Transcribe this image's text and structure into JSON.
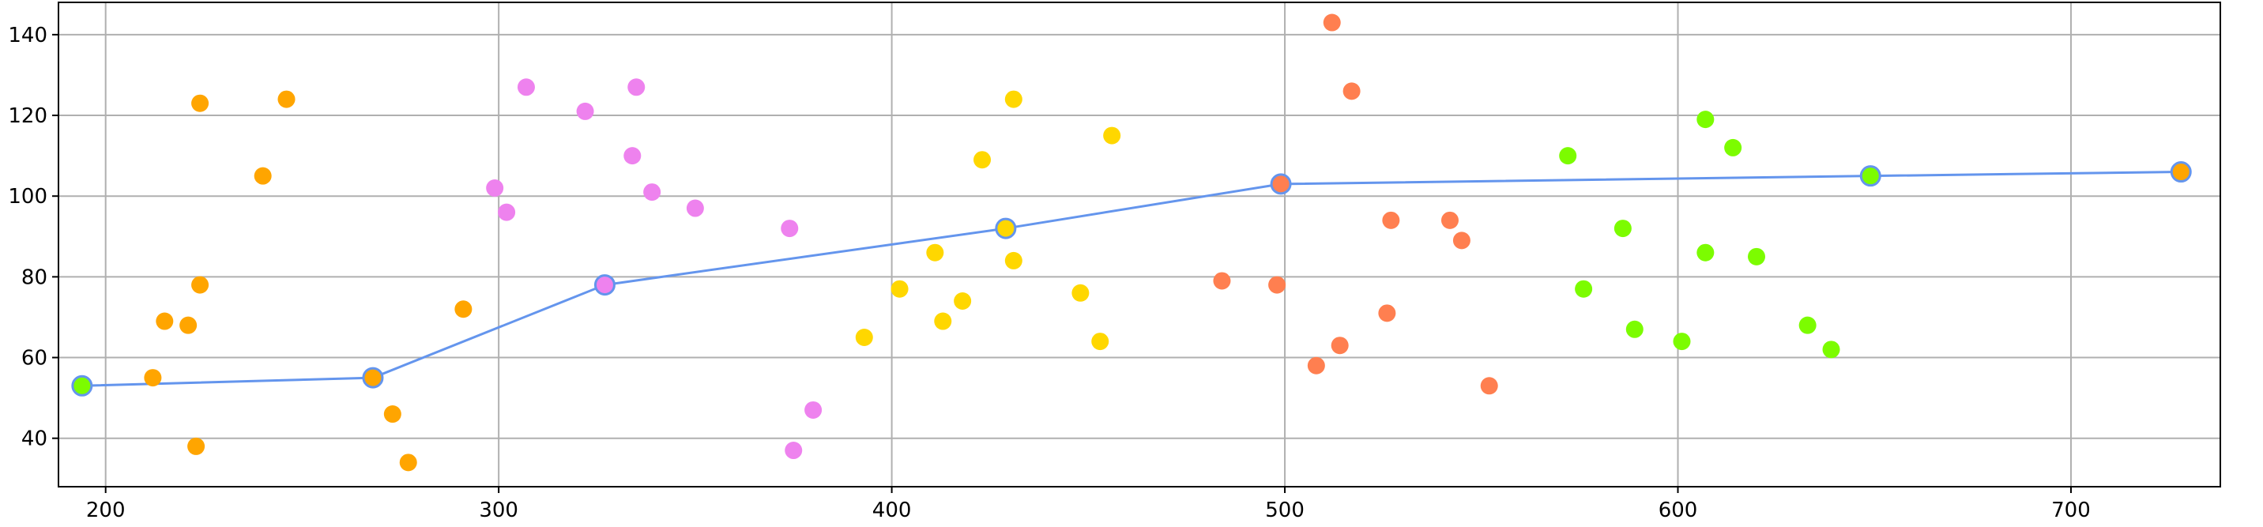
{
  "chart_data": {
    "type": "scatter",
    "title": "",
    "xlabel": "",
    "ylabel": "",
    "xlim": [
      188,
      738
    ],
    "ylim": [
      28,
      148
    ],
    "grid": true,
    "x_ticks": [
      200,
      300,
      400,
      500,
      600,
      700
    ],
    "y_ticks": [
      40,
      60,
      80,
      100,
      120,
      140
    ],
    "x_tick_labels": [
      "200",
      "300",
      "400",
      "500",
      "600",
      "700"
    ],
    "y_tick_labels": [
      "40",
      "60",
      "80",
      "100",
      "120",
      "140"
    ],
    "colors": {
      "line": "#6495ED",
      "grid": "#b0b0b0",
      "axes": "#000000"
    },
    "series": [
      {
        "color": "#FFA500",
        "points": [
          [
            224,
            123
          ],
          [
            246,
            124
          ],
          [
            240,
            105
          ],
          [
            224,
            78
          ],
          [
            215,
            69
          ],
          [
            221,
            68
          ],
          [
            212,
            55
          ],
          [
            223,
            38
          ],
          [
            291,
            72
          ],
          [
            273,
            46
          ],
          [
            277,
            34
          ]
        ]
      },
      {
        "color": "#EE82EE",
        "points": [
          [
            307,
            127
          ],
          [
            322,
            121
          ],
          [
            335,
            127
          ],
          [
            334,
            110
          ],
          [
            339,
            101
          ],
          [
            299,
            102
          ],
          [
            302,
            96
          ],
          [
            350,
            97
          ],
          [
            374,
            92
          ],
          [
            380,
            47
          ],
          [
            375,
            37
          ]
        ]
      },
      {
        "color": "#FFD700",
        "points": [
          [
            431,
            124
          ],
          [
            423,
            109
          ],
          [
            456,
            115
          ],
          [
            411,
            86
          ],
          [
            431,
            84
          ],
          [
            402,
            77
          ],
          [
            418,
            74
          ],
          [
            413,
            69
          ],
          [
            448,
            76
          ],
          [
            393,
            65
          ],
          [
            453,
            64
          ]
        ]
      },
      {
        "color": "#FF7F50",
        "points": [
          [
            512,
            143
          ],
          [
            517,
            126
          ],
          [
            527,
            94
          ],
          [
            542,
            94
          ],
          [
            545,
            89
          ],
          [
            484,
            79
          ],
          [
            498,
            78
          ],
          [
            526,
            71
          ],
          [
            514,
            63
          ],
          [
            508,
            58
          ],
          [
            552,
            53
          ]
        ]
      },
      {
        "color": "#7CFC00",
        "points": [
          [
            607,
            119
          ],
          [
            614,
            112
          ],
          [
            572,
            110
          ],
          [
            586,
            92
          ],
          [
            607,
            86
          ],
          [
            620,
            85
          ],
          [
            576,
            77
          ],
          [
            589,
            67
          ],
          [
            601,
            64
          ],
          [
            633,
            68
          ],
          [
            639,
            62
          ]
        ]
      }
    ],
    "line": {
      "points": [
        {
          "x": 194,
          "y": 53,
          "fill": "#7CFC00"
        },
        {
          "x": 268,
          "y": 55,
          "fill": "#FFA500"
        },
        {
          "x": 327,
          "y": 78,
          "fill": "#EE82EE"
        },
        {
          "x": 429,
          "y": 92,
          "fill": "#FFD700"
        },
        {
          "x": 499,
          "y": 103,
          "fill": "#FF7F50"
        },
        {
          "x": 649,
          "y": 105,
          "fill": "#7CFC00"
        },
        {
          "x": 728,
          "y": 106,
          "fill": "#FFA500"
        }
      ]
    }
  }
}
